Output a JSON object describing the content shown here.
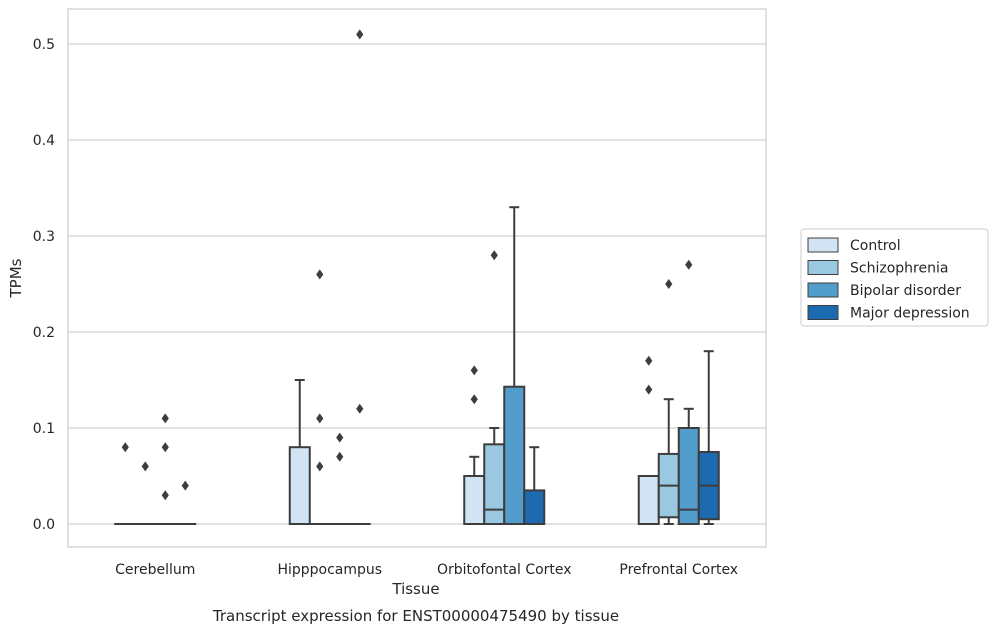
{
  "chart_data": {
    "type": "boxplot",
    "title": "",
    "caption": "Transcript expression for ENST00000475490 by tissue",
    "xlabel": "Tissue",
    "ylabel": "TPMs",
    "ylim": [
      -0.025,
      0.537
    ],
    "yticks": [
      0.0,
      0.1,
      0.2,
      0.3,
      0.4,
      0.5
    ],
    "ytick_labels": [
      "0.0",
      "0.1",
      "0.2",
      "0.3",
      "0.4",
      "0.5"
    ],
    "grid": "horizontal",
    "legend_position": "right",
    "categories": [
      "Cerebellum",
      "Hipppocampus",
      "Orbitofontal Cortex",
      "Prefrontal Cortex"
    ],
    "series": [
      {
        "name": "Control",
        "color": "#d2e3f3",
        "boxes": [
          {
            "q1": 0,
            "median": 0,
            "q3": 0,
            "whisker_low": 0,
            "whisker_high": 0,
            "outliers": [
              0.08
            ]
          },
          {
            "q1": 0,
            "median": 0,
            "q3": 0.08,
            "whisker_low": 0,
            "whisker_high": 0.15,
            "outliers": []
          },
          {
            "q1": 0,
            "median": 0,
            "q3": 0.05,
            "whisker_low": 0,
            "whisker_high": 0.07,
            "outliers": [
              0.16,
              0.13
            ]
          },
          {
            "q1": 0,
            "median": 0,
            "q3": 0.05,
            "whisker_low": 0,
            "whisker_high": 0.05,
            "outliers": [
              0.17,
              0.14
            ]
          }
        ]
      },
      {
        "name": "Schizophrenia",
        "color": "#9ac8e0",
        "boxes": [
          {
            "q1": 0,
            "median": 0,
            "q3": 0,
            "whisker_low": 0,
            "whisker_high": 0,
            "outliers": [
              0.06
            ]
          },
          {
            "q1": 0,
            "median": 0,
            "q3": 0,
            "whisker_low": 0,
            "whisker_high": 0,
            "outliers": [
              0.26,
              0.11,
              0.06
            ]
          },
          {
            "q1": 0,
            "median": 0.015,
            "q3": 0.083,
            "whisker_low": 0,
            "whisker_high": 0.1,
            "outliers": [
              0.28
            ]
          },
          {
            "q1": 0.007,
            "median": 0.04,
            "q3": 0.073,
            "whisker_low": 0,
            "whisker_high": 0.13,
            "outliers": [
              0.25
            ]
          }
        ]
      },
      {
        "name": "Bipolar disorder",
        "color": "#529dcc",
        "boxes": [
          {
            "q1": 0,
            "median": 0,
            "q3": 0,
            "whisker_low": 0,
            "whisker_high": 0,
            "outliers": [
              0.11,
              0.08,
              0.03
            ]
          },
          {
            "q1": 0,
            "median": 0,
            "q3": 0,
            "whisker_low": 0,
            "whisker_high": 0,
            "outliers": [
              0.09,
              0.07
            ]
          },
          {
            "q1": 0,
            "median": 0,
            "q3": 0.143,
            "whisker_low": 0,
            "whisker_high": 0.33,
            "outliers": []
          },
          {
            "q1": 0,
            "median": 0.015,
            "q3": 0.1,
            "whisker_low": 0,
            "whisker_high": 0.12,
            "outliers": [
              0.27
            ]
          }
        ]
      },
      {
        "name": "Major depression",
        "color": "#1c6aaf",
        "boxes": [
          {
            "q1": 0,
            "median": 0,
            "q3": 0,
            "whisker_low": 0,
            "whisker_high": 0,
            "outliers": [
              0.04
            ]
          },
          {
            "q1": 0,
            "median": 0,
            "q3": 0,
            "whisker_low": 0,
            "whisker_high": 0,
            "outliers": [
              0.51,
              0.12
            ]
          },
          {
            "q1": 0,
            "median": 0,
            "q3": 0.035,
            "whisker_low": 0,
            "whisker_high": 0.08,
            "outliers": []
          },
          {
            "q1": 0.005,
            "median": 0.04,
            "q3": 0.075,
            "whisker_low": 0,
            "whisker_high": 0.18,
            "outliers": []
          }
        ]
      }
    ]
  }
}
